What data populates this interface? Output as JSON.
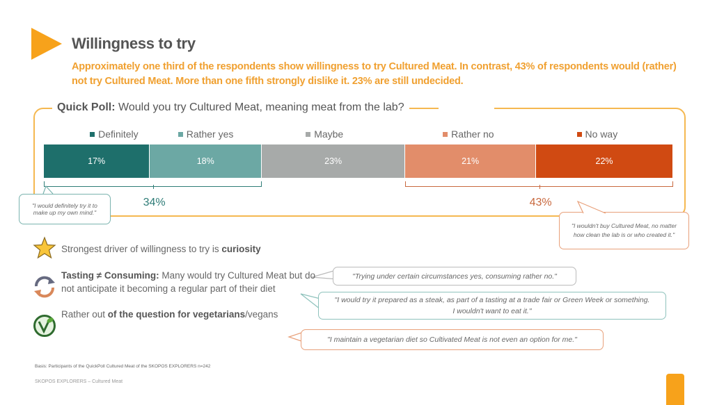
{
  "header": {
    "title": "Willingness to try",
    "subtitle": "Approximately one third of the respondents show willingness to try Cultured Meat. In contrast, 43% of respondents would (rather) not try Cultured Meat. More than one fifth strongly dislike it. 23% are still undecided."
  },
  "poll": {
    "label": "Quick Poll:",
    "question": "Would you try Cultured Meat, meaning meat from the lab?"
  },
  "chart_data": {
    "type": "bar",
    "orientation": "horizontal-stacked",
    "title": "Quick Poll: Would you try Cultured Meat, meaning meat from the lab?",
    "categories": [
      "Definitely",
      "Rather yes",
      "Maybe",
      "Rather no",
      "No way"
    ],
    "values": [
      17,
      18,
      23,
      21,
      22
    ],
    "value_labels": [
      "17%",
      "18%",
      "23%",
      "21%",
      "22%"
    ],
    "colors": [
      "#1e6f6b",
      "#6ca8a4",
      "#a7aaa9",
      "#e28d6a",
      "#d04a12"
    ],
    "legend_position": "top",
    "groups": [
      {
        "label": "34%",
        "from": 0,
        "to": 1,
        "color": "#2e7c77"
      },
      {
        "label": "43%",
        "from": 3,
        "to": 4,
        "color": "#c8683e"
      }
    ]
  },
  "quotes": {
    "definitely": "\"I would definitely try it to make up my own mind.\"",
    "no_way": "\"I wouldn't buy Cultured Meat, no matter how clean the lab is or who created it.\"",
    "trying": "\"Trying under certain circumstances yes, consuming rather no.\"",
    "steak": "\"I would try it prepared as a steak, as part of a tasting at a trade fair or Green Week or something. I wouldn't want to eat it.\"",
    "vegetarian": "\"I maintain a vegetarian diet so Cultivated Meat is not even an option for me.\""
  },
  "bullets": [
    {
      "icon": "star-icon",
      "text": "Strongest driver of willingness to try is ",
      "bold": "curiosity"
    },
    {
      "icon": "cycle-arrows-icon",
      "bold": "Tasting ≠ Consuming:",
      "text": " Many would try Cultured Meat but do not anticipate it becoming a regular part of their diet"
    },
    {
      "icon": "vegan-icon",
      "pre": "Rather out ",
      "bold": "of the question for vegetarians",
      "post": "/vegans"
    }
  ],
  "footer": {
    "basis": "Basis: Participants of the QuickPoll Cultured Meat of the SKOPOS EXPLORERS n=242",
    "source": "SKOPOS EXPLORERS – Cultured Meat"
  }
}
